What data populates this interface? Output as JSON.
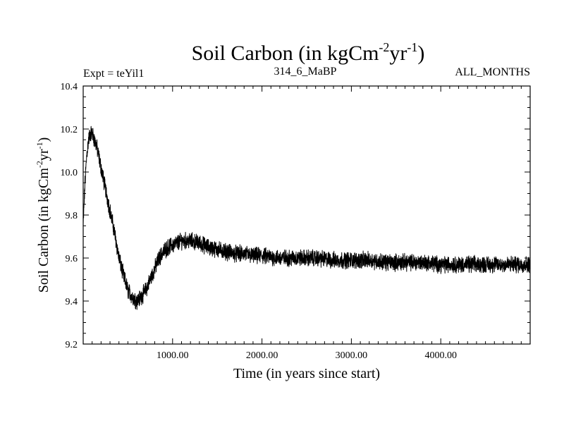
{
  "chart_data": {
    "type": "line",
    "title": {
      "main": "Soil Carbon (in kgCm",
      "exp1": "-2",
      "mid": "yr",
      "exp2": "-1",
      "end": ")"
    },
    "left_note": "Expt = teYil1",
    "center_note": "314_6_MaBP",
    "right_note": "ALL_MONTHS",
    "xlabel": "Time (in years since start)",
    "ylabel": {
      "main": "Soil Carbon (in kgCm",
      "exp1": "-2",
      "mid": "yr",
      "exp2": "-1",
      "end": ")"
    },
    "xlim": [
      0,
      5000
    ],
    "ylim": [
      9.2,
      10.4
    ],
    "x_ticks": [
      {
        "value": 1000,
        "label": "1000.00"
      },
      {
        "value": 2000,
        "label": "2000.00"
      },
      {
        "value": 3000,
        "label": "3000.00"
      },
      {
        "value": 4000,
        "label": "4000.00"
      }
    ],
    "y_ticks": [
      {
        "value": 9.2,
        "label": "9.2"
      },
      {
        "value": 9.4,
        "label": "9.4"
      },
      {
        "value": 9.6,
        "label": "9.6"
      },
      {
        "value": 9.8,
        "label": "9.8"
      },
      {
        "value": 10.0,
        "label": "10.0"
      },
      {
        "value": 10.2,
        "label": "10.2"
      },
      {
        "value": 10.4,
        "label": "10.4"
      }
    ],
    "series": [
      {
        "name": "Soil Carbon",
        "color": "#000000",
        "x": [
          0,
          20,
          40,
          60,
          80,
          100,
          150,
          200,
          250,
          300,
          350,
          400,
          450,
          500,
          550,
          600,
          650,
          700,
          750,
          800,
          850,
          900,
          950,
          1000,
          1100,
          1200,
          1300,
          1400,
          1500,
          1600,
          1700,
          1800,
          1900,
          2000,
          2200,
          2400,
          2600,
          2800,
          3000,
          3200,
          3400,
          3600,
          3800,
          4000,
          4200,
          4400,
          4600,
          4800,
          5000
        ],
        "y": [
          9.75,
          9.95,
          10.08,
          10.15,
          10.18,
          10.18,
          10.12,
          10.02,
          9.92,
          9.82,
          9.72,
          9.6,
          9.52,
          9.45,
          9.42,
          9.4,
          9.42,
          9.45,
          9.5,
          9.55,
          9.6,
          9.63,
          9.65,
          9.66,
          9.68,
          9.68,
          9.67,
          9.65,
          9.64,
          9.63,
          9.62,
          9.62,
          9.61,
          9.61,
          9.6,
          9.6,
          9.6,
          9.59,
          9.59,
          9.59,
          9.58,
          9.58,
          9.58,
          9.57,
          9.57,
          9.57,
          9.57,
          9.57,
          9.57
        ],
        "noise_amplitude": 0.03
      }
    ]
  }
}
